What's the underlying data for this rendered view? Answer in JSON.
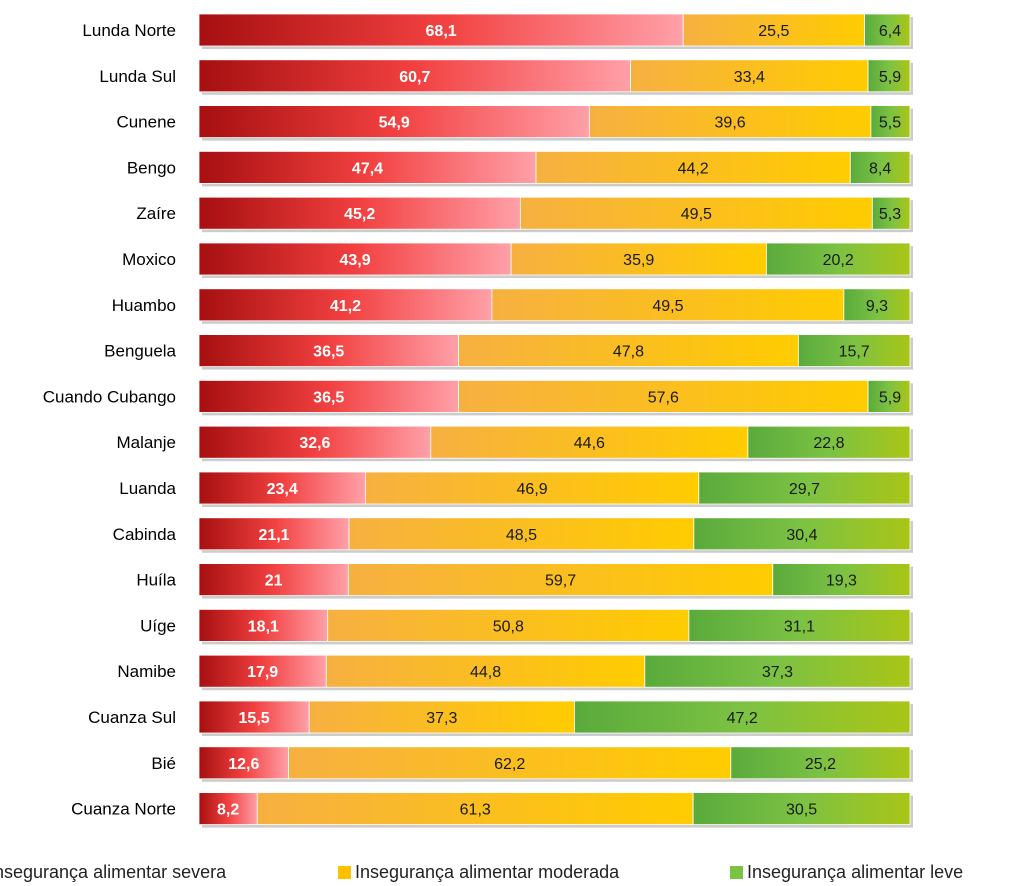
{
  "colors": {
    "severe_dark": "#a60f10",
    "severe_light": "#ffa0a8",
    "moderate_light": "#f6b041",
    "moderate_dark": "#ffcc00",
    "mild_dark": "#5aaa3c",
    "mild_light": "#a9c516",
    "shadow": "#c9c9c9"
  },
  "legend": [
    {
      "label": "nsegurança alimentar severa",
      "key": "severe"
    },
    {
      "label": "Insegurança alimentar moderada",
      "key": "moderate"
    },
    {
      "label": "Insegurança alimentar leve",
      "key": "mild"
    }
  ],
  "chart_data": {
    "type": "bar",
    "orientation": "horizontal",
    "stacked": true,
    "xlim": [
      0,
      100
    ],
    "grid": false,
    "legend_position": "bottom",
    "categories": [
      "Lunda Norte",
      "Lunda Sul",
      "Cunene",
      "Bengo",
      "Zaíre",
      "Moxico",
      "Huambo",
      "Benguela",
      "Cuando Cubango",
      "Malanje",
      "Luanda",
      "Cabinda",
      "Huíla",
      "Uíge",
      "Namibe",
      "Cuanza Sul",
      "Bié",
      "Cuanza Norte"
    ],
    "series": [
      {
        "name": "Insegurança alimentar severa",
        "key": "severe",
        "values": [
          68.1,
          60.7,
          54.9,
          47.4,
          45.2,
          43.9,
          41.2,
          36.5,
          36.5,
          32.6,
          23.4,
          21.1,
          21,
          18.1,
          17.9,
          15.5,
          12.6,
          8.2
        ]
      },
      {
        "name": "Insegurança alimentar moderada",
        "key": "moderate",
        "values": [
          25.5,
          33.4,
          39.6,
          44.2,
          49.5,
          35.9,
          49.5,
          47.8,
          57.6,
          44.6,
          46.9,
          48.5,
          59.7,
          50.8,
          44.8,
          37.3,
          62.2,
          61.3
        ]
      },
      {
        "name": "Insegurança alimentar leve",
        "key": "mild",
        "values": [
          6.4,
          5.9,
          5.5,
          8.4,
          5.3,
          20.2,
          9.3,
          15.7,
          5.9,
          22.8,
          29.7,
          30.4,
          19.3,
          31.1,
          37.3,
          47.2,
          25.2,
          30.5
        ]
      }
    ],
    "value_labels": {
      "severe": [
        "68,1",
        "60,7",
        "54,9",
        "47,4",
        "45,2",
        "43,9",
        "41,2",
        "36,5",
        "36,5",
        "32,6",
        "23,4",
        "21,1",
        "21",
        "18,1",
        "17,9",
        "15,5",
        "12,6",
        "8,2"
      ],
      "moderate": [
        "25,5",
        "33,4",
        "39,6",
        "44,2",
        "49,5",
        "35,9",
        "49,5",
        "47,8",
        "57,6",
        "44,6",
        "46,9",
        "48,5",
        "59,7",
        "50,8",
        "44,8",
        "37,3",
        "62,2",
        "61,3"
      ],
      "mild": [
        "6,4",
        "5,9",
        "5,5",
        "8,4",
        "5,3",
        "20,2",
        "9,3",
        "15,7",
        "5,9",
        "22,8",
        "29,7",
        "30,4",
        "19,3",
        "31,1",
        "37,3",
        "47,2",
        "25,2",
        "30,5"
      ]
    }
  }
}
